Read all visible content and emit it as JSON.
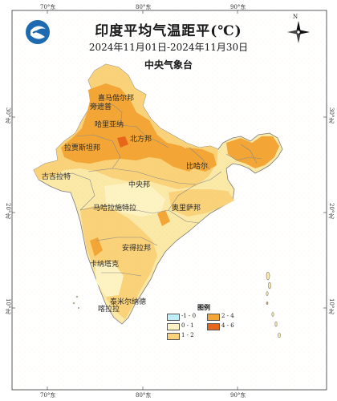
{
  "title": "印度平均气温距平(℃)",
  "date_range": "2024年11月01日-2024年11月30日",
  "issuer": "中央气象台",
  "longitude_ticks": [
    "70°东",
    "80°东",
    "90°东"
  ],
  "latitude_ticks": [
    "30°北",
    "20°北",
    "10°北"
  ],
  "region_labels": [
    "喜马偕尔邦",
    "旁遮普",
    "哈里亚纳",
    "北方邦",
    "拉贾斯坦邦",
    "比哈尔",
    "古吉拉特",
    "中央邦",
    "奥里萨邦",
    "马哈拉施特拉",
    "安得拉邦",
    "卡纳塔克",
    "泰米尔纳德",
    "喀拉拉"
  ],
  "legend": {
    "title": "图例",
    "items": [
      {
        "label": "-1 - 0",
        "color": "#bfeef8"
      },
      {
        "label": "0 - 1",
        "color": "#fdf3c2"
      },
      {
        "label": "1 - 2",
        "color": "#f9d27a"
      },
      {
        "label": "2 - 4",
        "color": "#f3a636"
      },
      {
        "label": "4 - 6",
        "color": "#e8651c"
      }
    ]
  },
  "colors": {
    "frame": "#333333",
    "sea": "#ffffff",
    "border": "#8a8a8a"
  },
  "icons": [
    "cma-logo-icon",
    "north-arrow-icon"
  ],
  "north_label": "N"
}
